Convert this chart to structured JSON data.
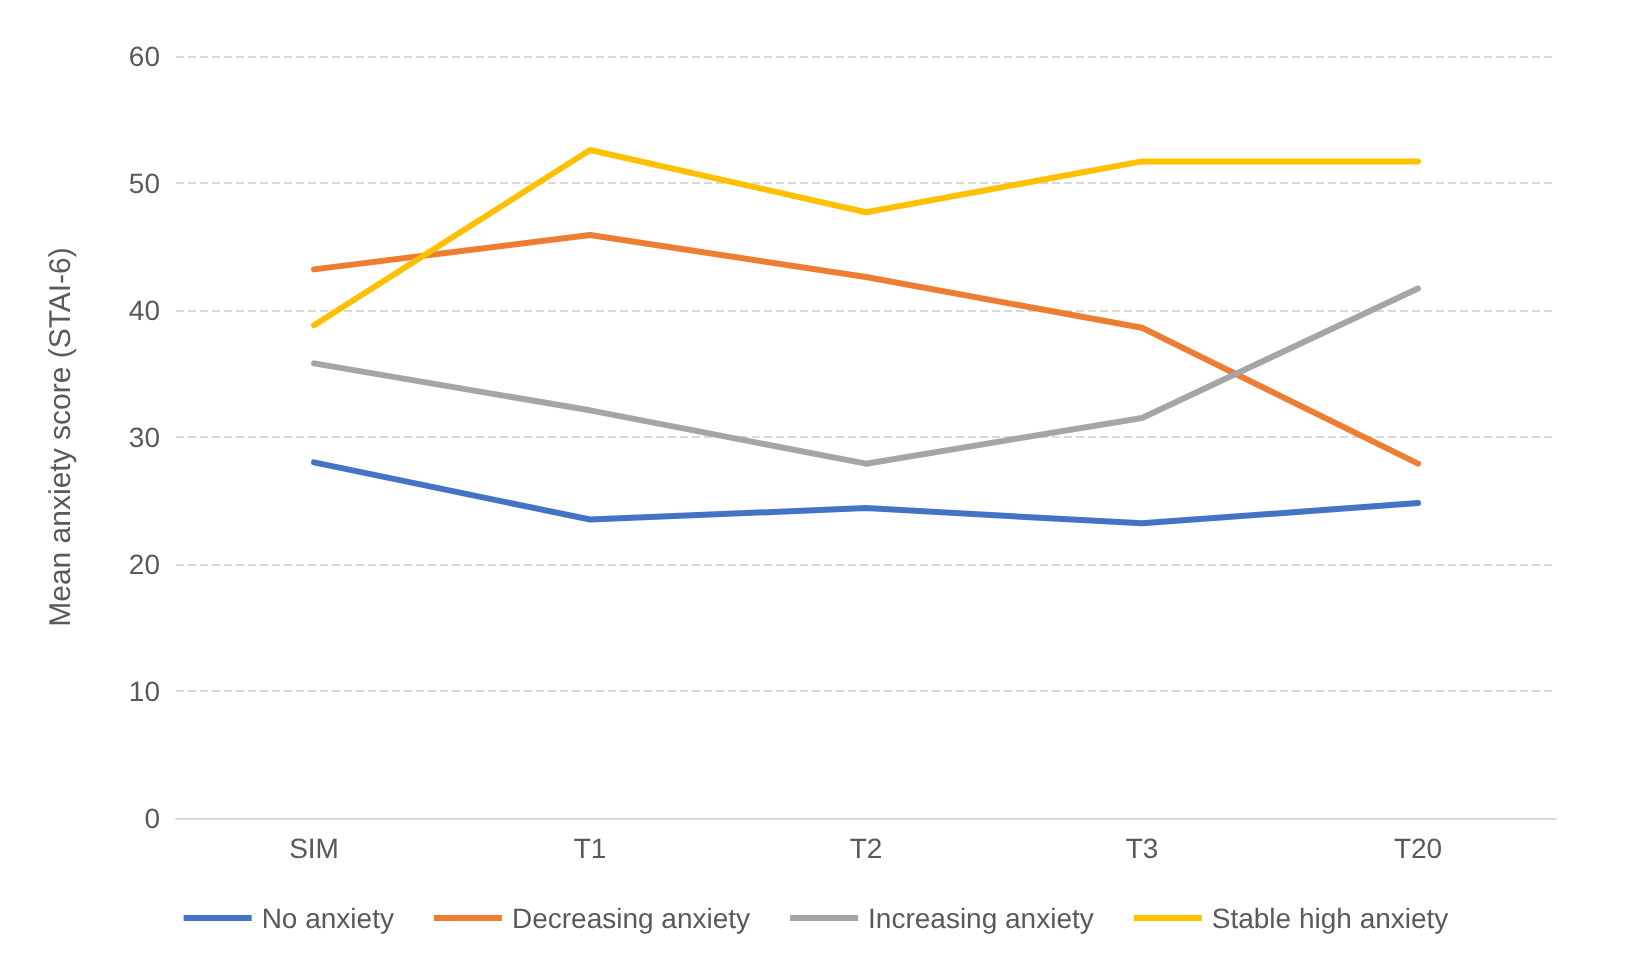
{
  "chart_data": {
    "type": "line",
    "ylabel": "Mean anxiety score (STAI-6)",
    "categories": [
      "SIM",
      "T1",
      "T2",
      "T3",
      "T20"
    ],
    "series": [
      {
        "name": "No anxiety",
        "color": "#4472c4",
        "values": [
          28.0,
          23.5,
          24.4,
          23.2,
          24.8
        ]
      },
      {
        "name": "Decreasing anxiety",
        "color": "#ed7d31",
        "values": [
          43.2,
          45.9,
          42.6,
          38.6,
          27.9
        ]
      },
      {
        "name": "Increasing anxiety",
        "color": "#a5a5a5",
        "values": [
          35.8,
          32.1,
          27.9,
          31.5,
          41.7
        ]
      },
      {
        "name": "Stable high anxiety",
        "color": "#ffc000",
        "values": [
          38.8,
          52.6,
          47.7,
          51.7,
          51.7
        ]
      }
    ],
    "ylim": [
      0,
      60
    ],
    "yticks": [
      0,
      10,
      20,
      30,
      40,
      50,
      60
    ],
    "grid": "y",
    "legend": "bottom",
    "marker": "none",
    "line_style": "solid"
  }
}
